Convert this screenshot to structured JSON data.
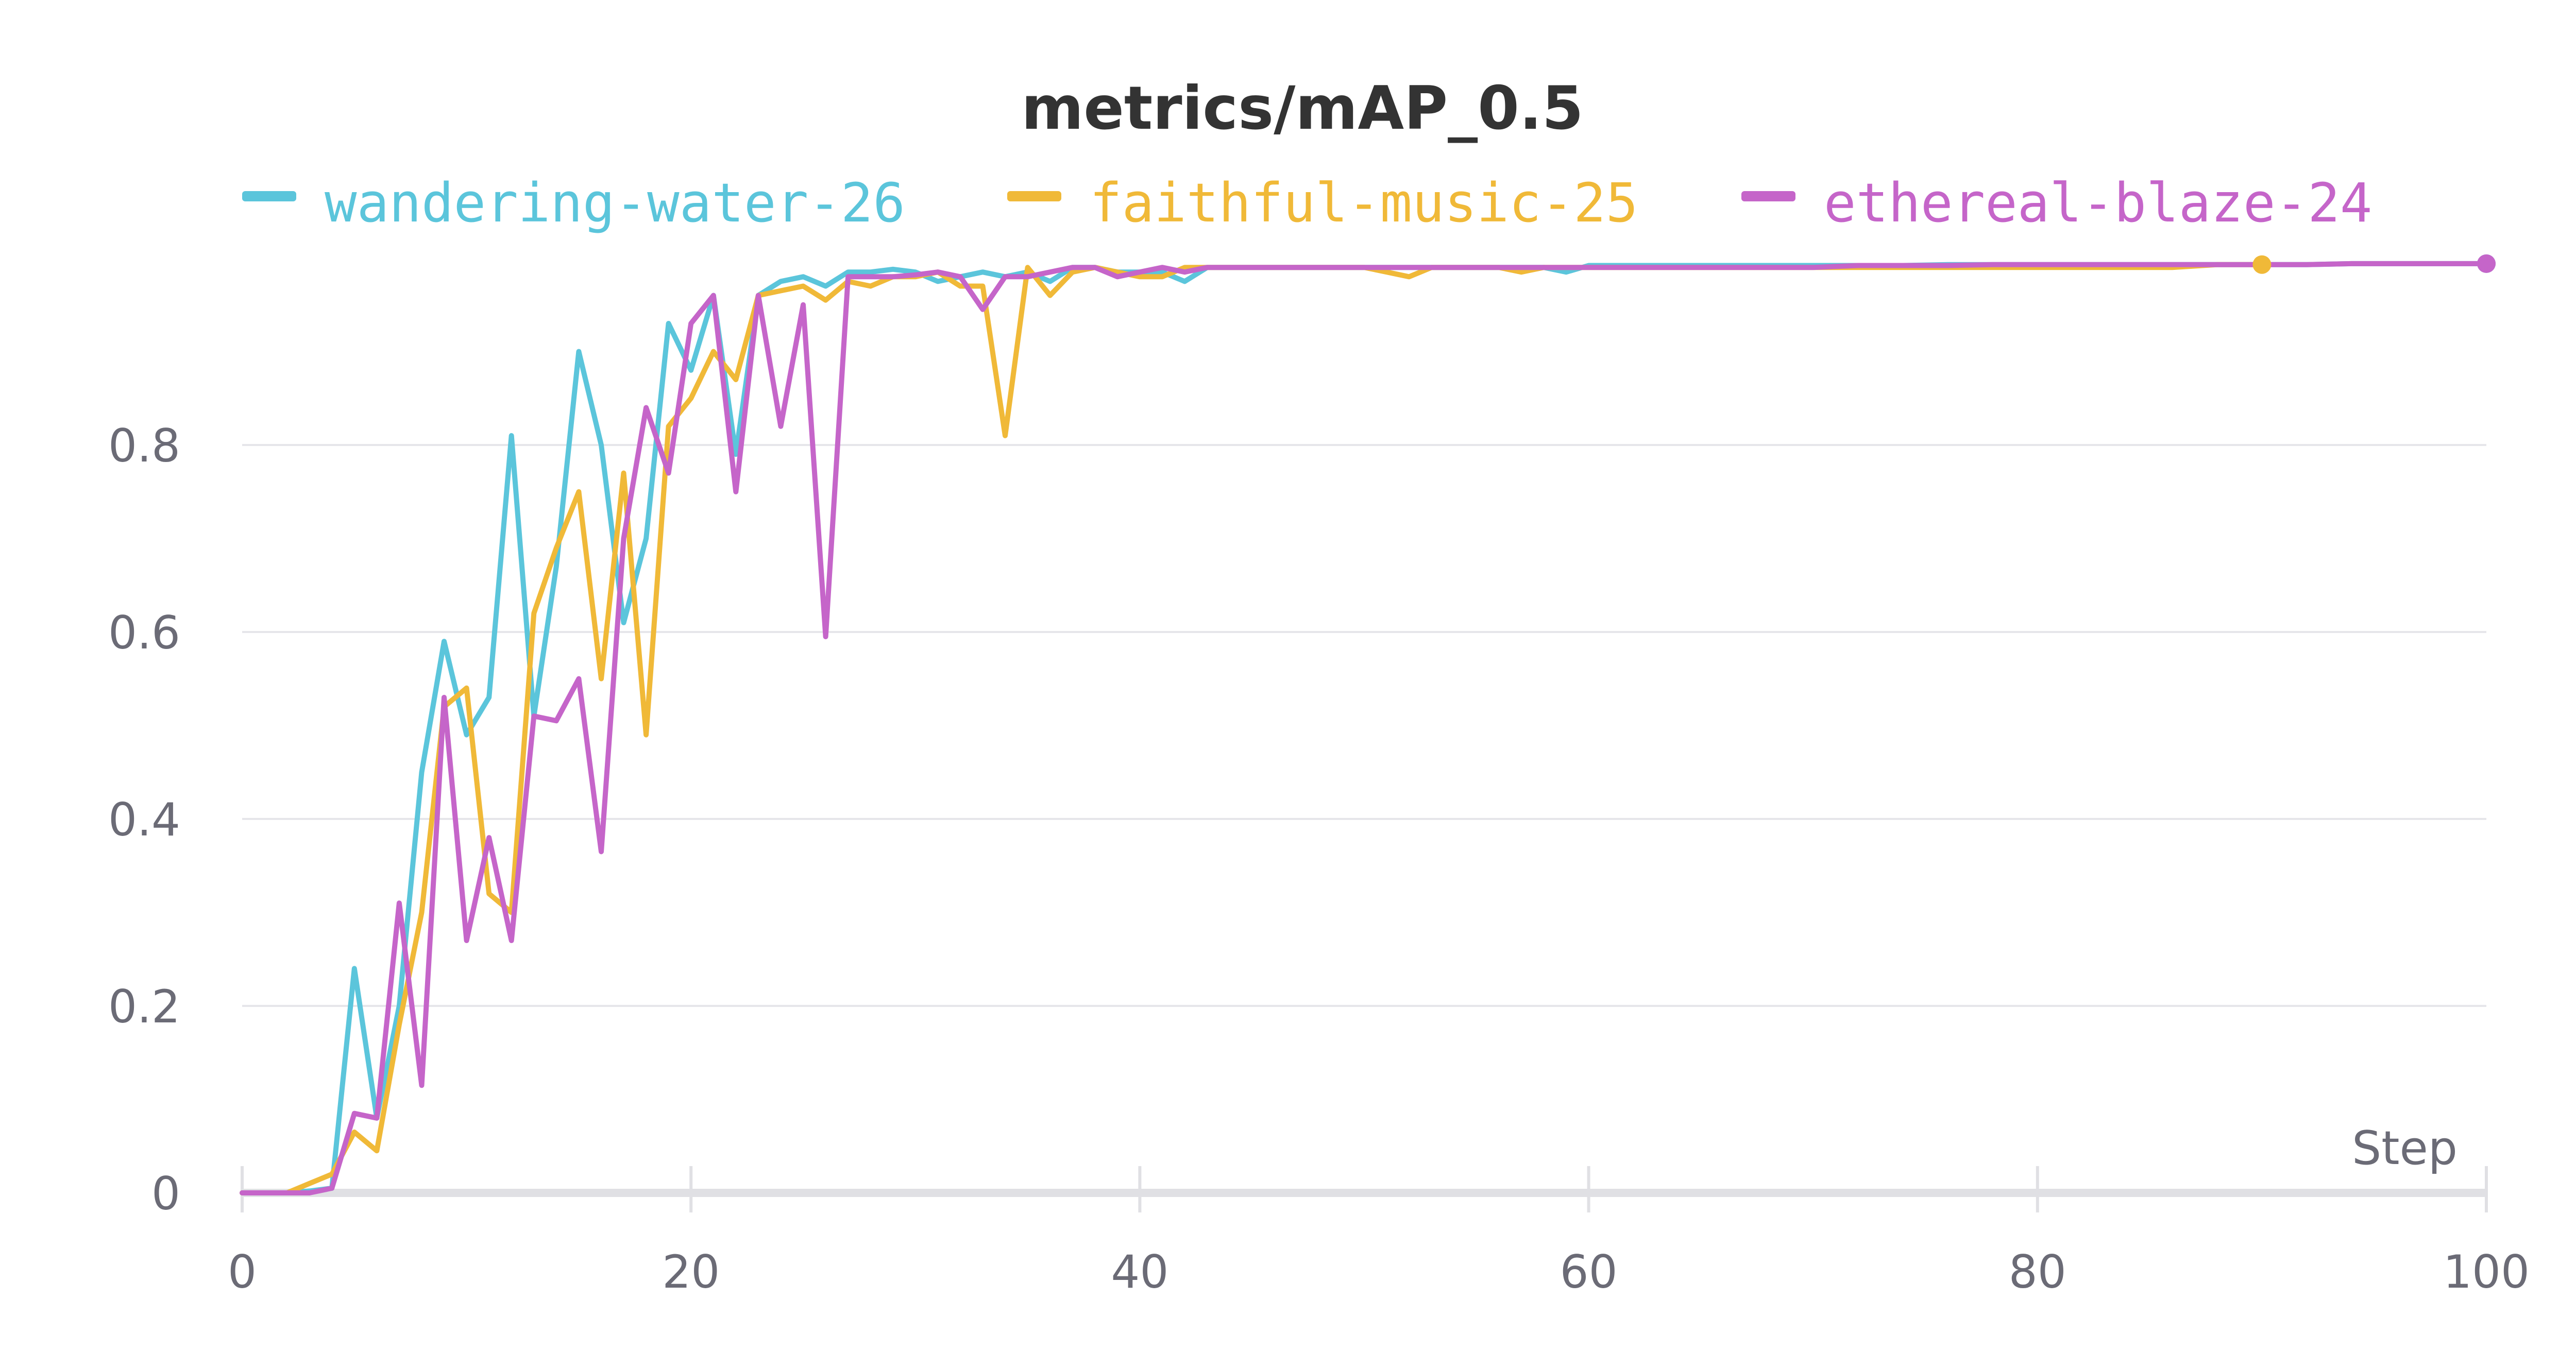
{
  "chart_data": {
    "type": "line",
    "title": "metrics/mAP_0.5",
    "xlabel": "Step",
    "ylabel": "",
    "xlim": [
      0,
      100
    ],
    "ylim": [
      0,
      1
    ],
    "x_ticks": [
      "0",
      "20",
      "40",
      "60",
      "80",
      "100"
    ],
    "y_ticks": [
      "0",
      "0.2",
      "0.4",
      "0.6",
      "0.8"
    ],
    "grid": true,
    "legend_position": "top",
    "series": [
      {
        "name": "wandering-water-26",
        "color": "#5bc5db",
        "x": [
          0,
          1,
          2,
          3,
          4,
          5,
          6,
          7,
          8,
          9,
          10,
          11,
          12,
          13,
          14,
          15,
          16,
          17,
          18,
          19,
          20,
          21,
          22,
          23,
          24,
          25,
          26,
          27,
          28,
          29,
          30,
          31,
          32,
          33,
          34,
          35,
          36,
          37,
          38,
          39,
          40,
          41,
          42,
          43,
          44,
          45,
          46,
          47,
          48,
          49,
          50,
          51,
          52,
          53,
          54,
          55,
          56,
          57,
          58,
          59,
          60,
          62,
          64,
          66,
          68,
          70,
          72,
          74,
          76,
          78,
          80,
          82,
          84,
          86,
          88,
          90,
          92,
          94,
          96,
          98,
          100
        ],
        "values": [
          0,
          0,
          0,
          0.002,
          0.005,
          0.24,
          0.08,
          0.2,
          0.45,
          0.59,
          0.49,
          0.53,
          0.81,
          0.51,
          0.67,
          0.9,
          0.8,
          0.61,
          0.7,
          0.93,
          0.88,
          0.96,
          0.79,
          0.96,
          0.975,
          0.98,
          0.97,
          0.985,
          0.985,
          0.988,
          0.985,
          0.975,
          0.98,
          0.985,
          0.98,
          0.985,
          0.975,
          0.99,
          0.99,
          0.985,
          0.985,
          0.985,
          0.975,
          0.99,
          0.99,
          0.99,
          0.99,
          0.99,
          0.99,
          0.99,
          0.99,
          0.99,
          0.99,
          0.99,
          0.99,
          0.99,
          0.99,
          0.99,
          0.99,
          0.985,
          0.992,
          0.992,
          0.992,
          0.992,
          0.992,
          0.992,
          0.992,
          0.992,
          0.993,
          0.993,
          0.993,
          0.993,
          0.993,
          0.993,
          0.993,
          0.993,
          0.993,
          0.994,
          0.994,
          0.994,
          0.994
        ]
      },
      {
        "name": "faithful-music-25",
        "color": "#f0b938",
        "x": [
          0,
          1,
          2,
          3,
          4,
          5,
          6,
          7,
          8,
          9,
          10,
          11,
          12,
          13,
          14,
          15,
          16,
          17,
          18,
          19,
          20,
          21,
          22,
          23,
          24,
          25,
          26,
          27,
          28,
          29,
          30,
          31,
          32,
          33,
          34,
          35,
          36,
          37,
          38,
          39,
          40,
          41,
          42,
          43,
          44,
          45,
          46,
          47,
          48,
          49,
          50,
          51,
          52,
          53,
          54,
          55,
          56,
          57,
          58,
          59,
          60,
          62,
          64,
          66,
          68,
          70,
          72,
          74,
          76,
          78,
          80,
          82,
          84,
          86,
          88,
          90
        ],
        "values": [
          0,
          0,
          0,
          0.01,
          0.02,
          0.065,
          0.045,
          0.18,
          0.3,
          0.52,
          0.54,
          0.32,
          0.3,
          0.62,
          0.69,
          0.75,
          0.55,
          0.77,
          0.49,
          0.82,
          0.85,
          0.9,
          0.87,
          0.96,
          0.965,
          0.97,
          0.955,
          0.975,
          0.97,
          0.98,
          0.98,
          0.985,
          0.97,
          0.97,
          0.81,
          0.99,
          0.96,
          0.985,
          0.99,
          0.985,
          0.98,
          0.98,
          0.99,
          0.99,
          0.99,
          0.99,
          0.99,
          0.99,
          0.99,
          0.99,
          0.99,
          0.985,
          0.98,
          0.99,
          0.99,
          0.99,
          0.99,
          0.985,
          0.99,
          0.99,
          0.99,
          0.99,
          0.99,
          0.99,
          0.99,
          0.99,
          0.99,
          0.99,
          0.99,
          0.99,
          0.99,
          0.99,
          0.99,
          0.99,
          0.993,
          0.993
        ]
      },
      {
        "name": "ethereal-blaze-24",
        "color": "#c565c9",
        "x": [
          0,
          1,
          2,
          3,
          4,
          5,
          6,
          7,
          8,
          9,
          10,
          11,
          12,
          13,
          14,
          15,
          16,
          17,
          18,
          19,
          20,
          21,
          22,
          23,
          24,
          25,
          26,
          27,
          28,
          29,
          30,
          31,
          32,
          33,
          34,
          35,
          36,
          37,
          38,
          39,
          40,
          41,
          42,
          43,
          44,
          45,
          46,
          47,
          48,
          49,
          50,
          51,
          52,
          53,
          54,
          55,
          56,
          57,
          58,
          59,
          60,
          62,
          64,
          66,
          68,
          70,
          72,
          74,
          76,
          78,
          80,
          82,
          84,
          86,
          88,
          90,
          92,
          94,
          96,
          98,
          100
        ],
        "values": [
          0,
          0,
          0,
          0,
          0.005,
          0.085,
          0.08,
          0.31,
          0.115,
          0.53,
          0.27,
          0.38,
          0.27,
          0.51,
          0.505,
          0.55,
          0.365,
          0.7,
          0.84,
          0.77,
          0.93,
          0.96,
          0.75,
          0.96,
          0.82,
          0.95,
          0.595,
          0.98,
          0.98,
          0.98,
          0.982,
          0.985,
          0.98,
          0.945,
          0.98,
          0.98,
          0.985,
          0.99,
          0.99,
          0.98,
          0.985,
          0.99,
          0.985,
          0.99,
          0.99,
          0.99,
          0.99,
          0.99,
          0.99,
          0.99,
          0.99,
          0.99,
          0.99,
          0.99,
          0.99,
          0.99,
          0.99,
          0.99,
          0.99,
          0.99,
          0.99,
          0.99,
          0.99,
          0.99,
          0.99,
          0.99,
          0.992,
          0.992,
          0.992,
          0.993,
          0.993,
          0.993,
          0.993,
          0.993,
          0.993,
          0.993,
          0.993,
          0.994,
          0.994,
          0.994,
          0.994
        ]
      }
    ]
  }
}
